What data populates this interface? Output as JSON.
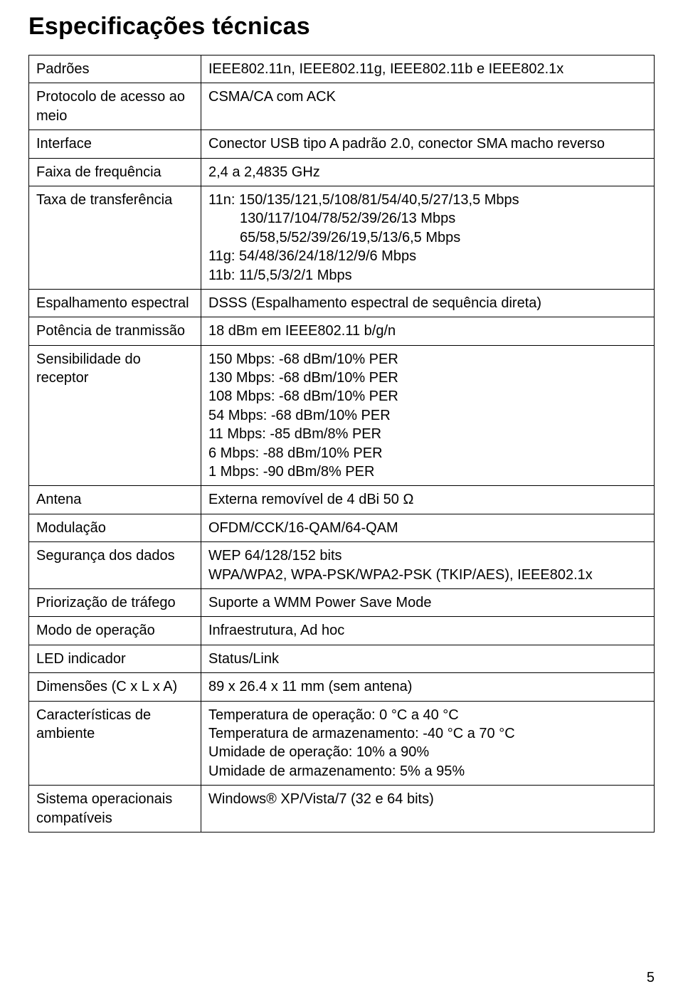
{
  "title": "Especificações técnicas",
  "page_number": "5",
  "colors": {
    "text": "#000000",
    "border": "#000000",
    "bg": "#ffffff"
  },
  "typography": {
    "title_fontsize": 34,
    "body_fontsize": 20,
    "font_family": "Arial"
  },
  "rows": {
    "padroes": {
      "label": "Padrões",
      "value": "IEEE802.11n, IEEE802.11g, IEEE802.11b e IEEE802.1x"
    },
    "protocolo": {
      "label": "Protocolo de acesso ao meio",
      "value": "CSMA/CA com ACK"
    },
    "interface": {
      "label": "Interface",
      "value": "Conector USB tipo A padrão 2.0, conector SMA macho reverso"
    },
    "faixa": {
      "label": "Faixa de frequência",
      "value": "2,4 a 2,4835 GHz"
    },
    "taxa": {
      "label": "Taxa de transferência",
      "line1": "11n: 150/135/121,5/108/81/54/40,5/27/13,5 Mbps",
      "line2": "130/117/104/78/52/39/26/13 Mbps",
      "line3": "65/58,5/52/39/26/19,5/13/6,5 Mbps",
      "line4": "11g: 54/48/36/24/18/12/9/6 Mbps",
      "line5": "11b: 11/5,5/3/2/1 Mbps"
    },
    "espalhamento": {
      "label": "Espalhamento espectral",
      "value": "DSSS (Espalhamento espectral de sequência direta)"
    },
    "potencia": {
      "label": "Potência de tranmissão",
      "value": "18 dBm em IEEE802.11 b/g/n"
    },
    "sensibilidade": {
      "label": "Sensibilidade do receptor",
      "l1": "150 Mbps: -68 dBm/10% PER",
      "l2": "130 Mbps: -68 dBm/10% PER",
      "l3": "108 Mbps: -68 dBm/10% PER",
      "l4": "54 Mbps: -68 dBm/10% PER",
      "l5": "11 Mbps: -85 dBm/8% PER",
      "l6": "6 Mbps: -88 dBm/10% PER",
      "l7": "1 Mbps: -90 dBm/8% PER"
    },
    "antena": {
      "label": "Antena",
      "value": "Externa removível de 4 dBi 50 Ω"
    },
    "modulacao": {
      "label": "Modulação",
      "value": "OFDM/CCK/16-QAM/64-QAM"
    },
    "seguranca": {
      "label": "Segurança dos dados",
      "l1": "WEP 64/128/152 bits",
      "l2": "WPA/WPA2, WPA-PSK/WPA2-PSK (TKIP/AES), IEEE802.1x"
    },
    "priorizacao": {
      "label": "Priorização de tráfego",
      "value": "Suporte a WMM Power Save Mode"
    },
    "modo": {
      "label": "Modo de operação",
      "value": "Infraestrutura, Ad hoc"
    },
    "led": {
      "label": "LED indicador",
      "value": "Status/Link"
    },
    "dimensoes": {
      "label": "Dimensões (C x L x A)",
      "value": "89 x 26.4 x 11 mm (sem antena)"
    },
    "ambiente": {
      "label": "Características de ambiente",
      "l1": "Temperatura de operação: 0 °C a 40 °C",
      "l2": "Temperatura de armazenamento: -40 °C a 70 °C",
      "l3": "Umidade de operação: 10% a 90%",
      "l4": "Umidade de armazenamento: 5% a 95%"
    },
    "sistema": {
      "label": "Sistema operacionais compatíveis",
      "value": "Windows® XP/Vista/7 (32 e 64 bits)"
    }
  }
}
